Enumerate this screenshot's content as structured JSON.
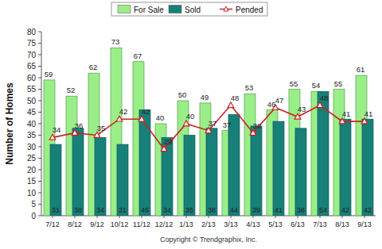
{
  "chart_data": {
    "type": "bar",
    "y_label": "Number of Homes",
    "annotation": "Copyright © Trendgraphix, Inc.",
    "categories": [
      "7/12",
      "8/12",
      "9/12",
      "10/12",
      "11/12",
      "12/12",
      "1/13",
      "2/13",
      "3/13",
      "4/13",
      "5/13",
      "6/13",
      "7/13",
      "8/13",
      "9/13"
    ],
    "series": [
      {
        "name": "For Sale",
        "type": "bar",
        "color": "#99ee88",
        "values": [
          59,
          52,
          62,
          73,
          67,
          40,
          50,
          49,
          37,
          53,
          46,
          55,
          54,
          55,
          61
        ]
      },
      {
        "name": "Sold",
        "type": "bar",
        "color": "#178079",
        "values": [
          31,
          38,
          34,
          31,
          46,
          34,
          35,
          38,
          44,
          39,
          41,
          38,
          54,
          42,
          42
        ]
      },
      {
        "name": "Pended",
        "type": "line",
        "color": "#cc2222",
        "marker": "triangle",
        "values": [
          34,
          36,
          35,
          42,
          42,
          29,
          40,
          37,
          48,
          36,
          47,
          43,
          48,
          41,
          41
        ]
      }
    ],
    "ylim": [
      0,
      80
    ],
    "yticks": [
      0,
      5,
      10,
      15,
      20,
      25,
      30,
      35,
      40,
      45,
      50,
      55,
      60,
      65,
      70,
      75,
      80
    ],
    "grid": false,
    "legend": "top",
    "data_labels": true
  }
}
